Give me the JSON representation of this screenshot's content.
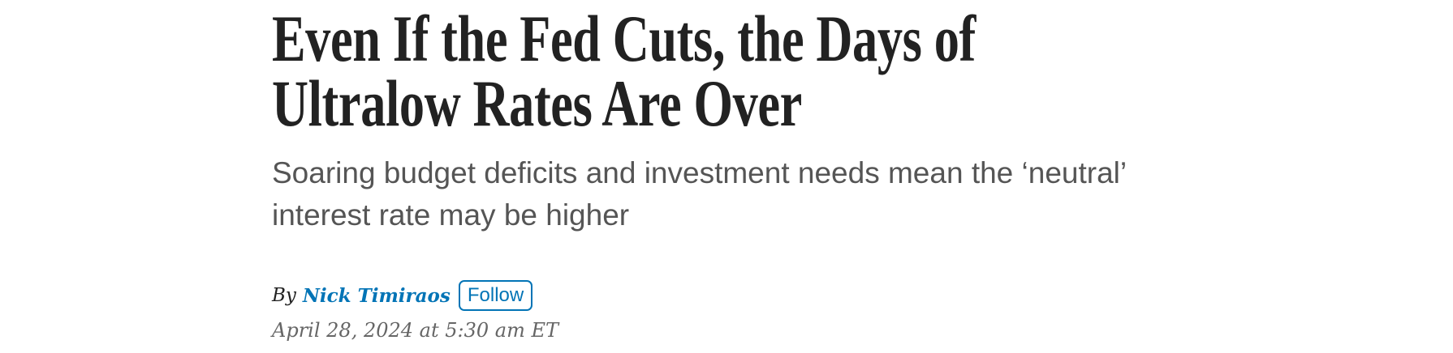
{
  "article": {
    "headline": "Even If the Fed Cuts, the Days of Ultralow Rates Are Over",
    "dek": "Soaring budget deficits and investment needs mean the ‘neutral’ interest rate may be higher",
    "byline_prefix": "By",
    "author": "Nick Timiraos",
    "follow_label": "Follow",
    "date": "April 28, 2024 at 5:30 am ET"
  },
  "colors": {
    "accent": "#0274b6",
    "headline": "#222222",
    "dek": "#555555",
    "date": "#666666"
  }
}
